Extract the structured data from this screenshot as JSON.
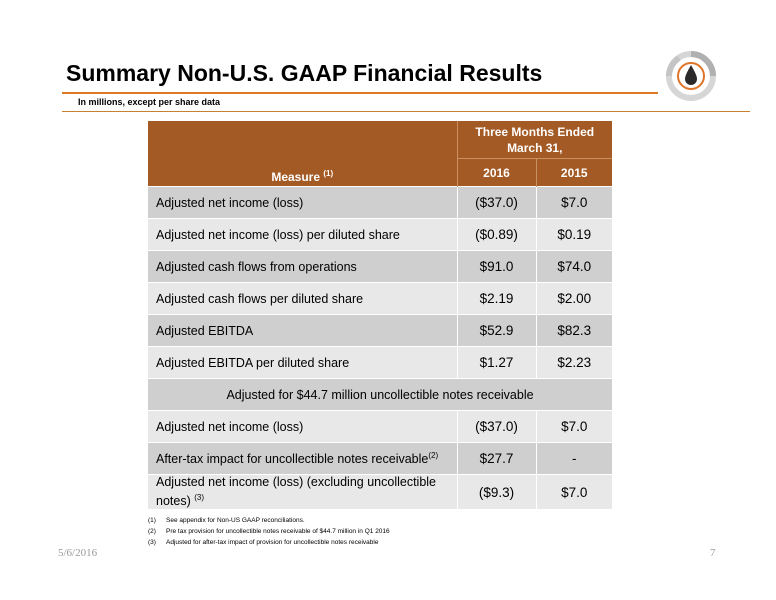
{
  "header": {
    "title": "Summary Non-U.S. GAAP Financial Results",
    "subtitle": "In millions, except per share data"
  },
  "colors": {
    "accent_orange": "#e07b25",
    "table_header": "#a45a24",
    "row_dark": "#cfcfcf",
    "row_light": "#e8e8e8",
    "logo_gray": "#b0b0b0",
    "logo_orange": "#e0752a"
  },
  "logo": {
    "icon": "company-logo-drop-icon"
  },
  "table": {
    "measure_label": "Measure",
    "measure_note": "(1)",
    "period_label": "Three Months Ended March 31,",
    "years": [
      "2016",
      "2015"
    ],
    "rows": [
      {
        "label": "Adjusted net income (loss)",
        "note": "",
        "v2016": "($37.0)",
        "v2015": "$7.0"
      },
      {
        "label": "Adjusted net income (loss) per diluted share",
        "note": "",
        "v2016": "($0.89)",
        "v2015": "$0.19"
      },
      {
        "label": "Adjusted cash flows from operations",
        "note": "",
        "v2016": "$91.0",
        "v2015": "$74.0"
      },
      {
        "label": "Adjusted cash flows per diluted share",
        "note": "",
        "v2016": "$2.19",
        "v2015": "$2.00"
      },
      {
        "label": "Adjusted EBITDA",
        "note": "",
        "v2016": "$52.9",
        "v2015": "$82.3"
      },
      {
        "label": "Adjusted EBITDA per diluted share",
        "note": "",
        "v2016": "$1.27",
        "v2015": "$2.23"
      }
    ],
    "section_label": "Adjusted for $44.7 million uncollectible notes receivable",
    "adjusted_rows": [
      {
        "label": "Adjusted net income (loss)",
        "note": "",
        "v2016": "($37.0)",
        "v2015": "$7.0"
      },
      {
        "label": "After-tax impact for uncollectible notes receivable",
        "note": "(2)",
        "v2016": "$27.7",
        "v2015": "-"
      },
      {
        "label": "Adjusted net income (loss) (excluding uncollectible notes)",
        "note": "(3)",
        "v2016": "($9.3)",
        "v2015": "$7.0"
      }
    ]
  },
  "footnotes": [
    {
      "num": "(1)",
      "text": "See appendix for Non-US GAAP reconciliations."
    },
    {
      "num": "(2)",
      "text": "Pre tax provision for uncollectible notes receivable of $44.7 million in Q1 2016"
    },
    {
      "num": "(3)",
      "text": "Adjusted for after-tax impact of provision for uncollectible notes receivable"
    }
  ],
  "footer": {
    "date": "5/6/2016",
    "page_number": "7"
  }
}
